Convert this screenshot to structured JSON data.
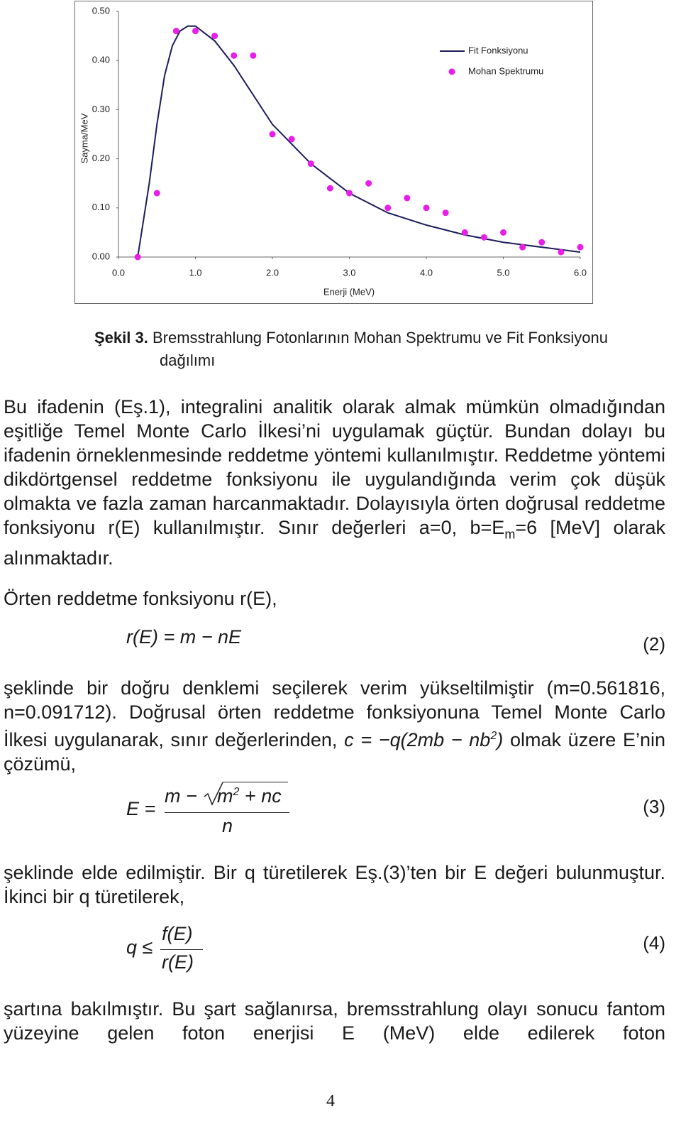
{
  "chart_data": {
    "type": "line",
    "xlabel": "Enerji (MeV)",
    "ylabel": "Sayma/MeV",
    "xlim": [
      0,
      6
    ],
    "ylim": [
      0,
      0.5
    ],
    "xticks": [
      {
        "value": 0,
        "label": "0.0"
      },
      {
        "value": 1,
        "label": "1.0"
      },
      {
        "value": 2,
        "label": "2.0"
      },
      {
        "value": 3,
        "label": "3.0"
      },
      {
        "value": 4,
        "label": "4.0"
      },
      {
        "value": 5,
        "label": "5.0"
      },
      {
        "value": 6,
        "label": "6.0"
      }
    ],
    "yticks": [
      {
        "value": 0,
        "label": "0.00"
      },
      {
        "value": 0.1,
        "label": "0.10"
      },
      {
        "value": 0.2,
        "label": "0.20"
      },
      {
        "value": 0.3,
        "label": "0.30"
      },
      {
        "value": 0.4,
        "label": "0.40"
      },
      {
        "value": 0.5,
        "label": "0.50"
      }
    ],
    "legend": "upper right",
    "series": [
      {
        "name": "Fit Fonksiyonu",
        "color": "#1c1c5c",
        "mode": "line",
        "x": [
          0.25,
          0.4,
          0.5,
          0.6,
          0.7,
          0.8,
          0.9,
          1.0,
          1.25,
          1.5,
          1.75,
          2.0,
          2.25,
          2.5,
          2.75,
          3.0,
          3.5,
          4.0,
          4.5,
          5.0,
          5.5,
          6.0
        ],
        "values": [
          0.0,
          0.15,
          0.27,
          0.37,
          0.43,
          0.46,
          0.47,
          0.47,
          0.44,
          0.39,
          0.33,
          0.27,
          0.23,
          0.19,
          0.16,
          0.13,
          0.09,
          0.065,
          0.045,
          0.03,
          0.02,
          0.01
        ]
      },
      {
        "name": "Mohan Spektrumu",
        "color": "#e81ee8",
        "mode": "markers",
        "x": [
          0.25,
          0.5,
          0.75,
          1.0,
          1.25,
          1.5,
          1.75,
          2.0,
          2.25,
          2.5,
          2.75,
          3.0,
          3.25,
          3.5,
          3.75,
          4.0,
          4.25,
          4.5,
          4.75,
          5.0,
          5.25,
          5.5,
          5.75,
          6.0
        ],
        "values": [
          0.0,
          0.13,
          0.46,
          0.46,
          0.45,
          0.41,
          0.41,
          0.25,
          0.24,
          0.19,
          0.14,
          0.13,
          0.15,
          0.1,
          0.12,
          0.1,
          0.09,
          0.05,
          0.04,
          0.05,
          0.02,
          0.03,
          0.01,
          0.02
        ]
      }
    ]
  },
  "caption": {
    "label": "Şekil 3.",
    "text": "Bremsstrahlung Fotonlarının Mohan Spektrumu ve Fit Fonksiyonu dağılımı"
  },
  "paragraph_1": {
    "text": "Bu ifadenin (Eş.1), integralini analitik olarak almak mümkün olmadığından eşitliğe Temel Monte Carlo İlkesi’ni uygulamak güçtür. Bundan dolayı bu ifadenin örneklenmesinde reddetme yöntemi kullanılmıştır. Reddetme yöntemi dikdörtgensel reddetme fonksiyonu ile uygulandığında verim çok düşük olmakta ve fazla zaman harcanmaktadır. Dolayısıyla örten doğrusal reddetme fonksiyonu r(E) kullanılmıştır. Sınır değerleri a=0, b=E",
    "sub": "m",
    "text_after": "=6 [MeV] olarak alınmaktadır."
  },
  "paragraph_2": {
    "text": "Örten reddetme fonksiyonu r(E),"
  },
  "equation_2": {
    "formula": "r(E) = m − nE",
    "number": "(2)"
  },
  "paragraph_3": {
    "text": "şeklinde bir doğru denklemi seçilerek verim yükseltilmiştir (m=0.561816, n=0.091712). Doğrusal örten reddetme fonksiyonuna Temel Monte Carlo İlkesi uygulanarak, sınır değerlerinden,",
    "inline_formula": "c = −q(2mb − nb",
    "inline_sup": "2",
    "inline_close": ")",
    "text_after": "olmak üzere E’nin çözümü,"
  },
  "equation_3": {
    "lhs": "E =",
    "numerator": "m −",
    "radicand": "m",
    "radicand_sup": "2",
    "radicand_rest": "+ nc",
    "denominator": "n",
    "number": "(3)"
  },
  "paragraph_4": {
    "text": "şeklinde elde edilmiştir. Bir q türetilerek Eş.(3)’ten bir E değeri bulunmuştur. İkinci bir q türetilerek,"
  },
  "equation_4": {
    "lhs": "q ≤",
    "numerator": "f(E)",
    "denominator": "r(E)",
    "number": "(4)"
  },
  "paragraph_5": {
    "text": "şartına bakılmıştır. Bu şart sağlanırsa, bremsstrahlung olayı sonucu fantom yüzeyine gelen foton enerjisi E (MeV) elde edilerek foton"
  },
  "page_number": "4"
}
